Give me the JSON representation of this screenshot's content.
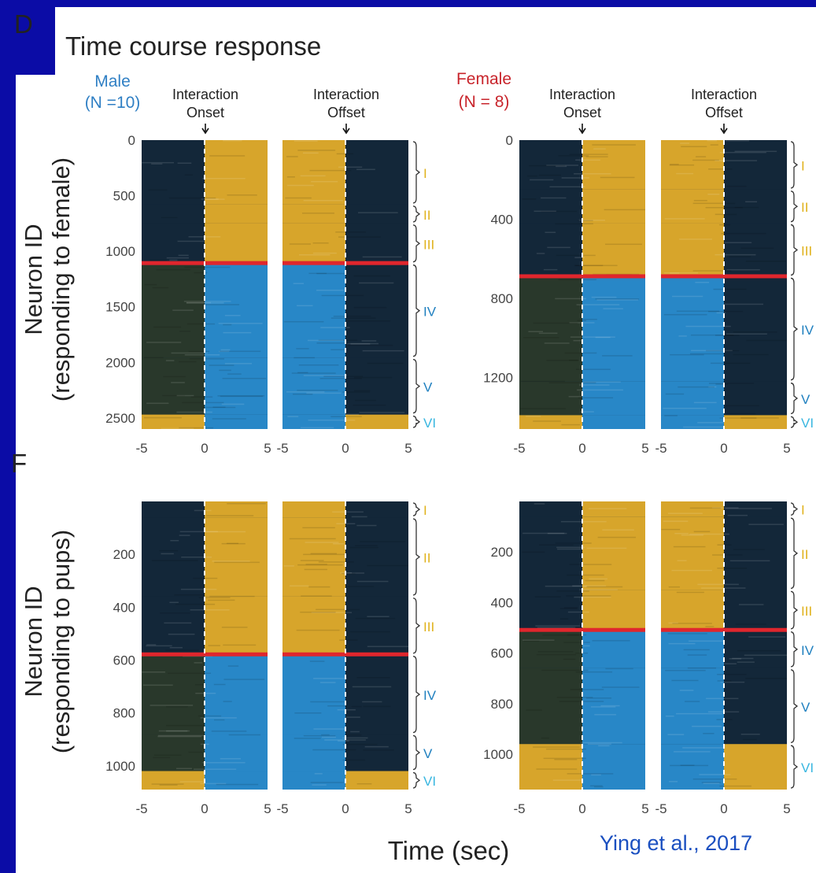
{
  "panel_letter_top": "D",
  "panel_letter_bottom": "F",
  "title": "Time course response",
  "groups": [
    {
      "name": "Male",
      "n": "(N =10)",
      "color": "#2f7fc4"
    },
    {
      "name": "Female",
      "n": "(N = 8)",
      "color": "#c8242b"
    }
  ],
  "headings": {
    "onset": [
      "Interaction",
      "Onset"
    ],
    "offset": [
      "Interaction",
      "Offset"
    ]
  },
  "ylabels": {
    "top": [
      "Neuron ID",
      "(responding to female)"
    ],
    "bottom": [
      "Neuron ID",
      "(responding to pups)"
    ]
  },
  "xlabel": "Time (sec)",
  "credit": "Ying et al., 2017",
  "colors": {
    "up": "#e8b02a",
    "down": "#2a8fd4",
    "neutral": "#13273a",
    "divider": "#e0262d",
    "cluster_up": "#e0b21c",
    "cluster_down": "#1e7fbf",
    "cluster_light": "#38b6e0"
  },
  "chart_data": [
    {
      "type": "heatmap",
      "title": "Male (N =10)",
      "ylabel": "Neuron ID (responding to female)",
      "xlabel": "Time (sec)",
      "panels": [
        "Interaction Onset",
        "Interaction Offset"
      ],
      "x": [
        -5,
        0,
        5
      ],
      "xticks": [
        "-5",
        "0",
        "5"
      ],
      "ylim": [
        0,
        2600
      ],
      "yticks": [
        0,
        500,
        1000,
        1500,
        2000,
        2500
      ],
      "divider_at": 1110,
      "clusters": [
        {
          "label": "I",
          "start": 0,
          "end": 580,
          "sign": "up"
        },
        {
          "label": "II",
          "start": 580,
          "end": 750,
          "sign": "up"
        },
        {
          "label": "III",
          "start": 750,
          "end": 1110,
          "sign": "up"
        },
        {
          "label": "IV",
          "start": 1110,
          "end": 1960,
          "sign": "down"
        },
        {
          "label": "V",
          "start": 1960,
          "end": 2470,
          "sign": "down"
        },
        {
          "label": "VI",
          "start": 2470,
          "end": 2600,
          "sign": "light"
        }
      ]
    },
    {
      "type": "heatmap",
      "title": "Female (N = 8)",
      "ylabel": "Neuron ID (responding to female)",
      "xlabel": "Time (sec)",
      "panels": [
        "Interaction Onset",
        "Interaction Offset"
      ],
      "x": [
        -5,
        0,
        5
      ],
      "xticks": [
        "-5",
        "0",
        "5"
      ],
      "ylim": [
        0,
        1460
      ],
      "yticks": [
        0,
        400,
        800,
        1200
      ],
      "divider_at": 690,
      "clusters": [
        {
          "label": "I",
          "start": 0,
          "end": 250,
          "sign": "up"
        },
        {
          "label": "II",
          "start": 250,
          "end": 420,
          "sign": "up"
        },
        {
          "label": "III",
          "start": 420,
          "end": 690,
          "sign": "up"
        },
        {
          "label": "IV",
          "start": 690,
          "end": 1220,
          "sign": "down"
        },
        {
          "label": "V",
          "start": 1220,
          "end": 1390,
          "sign": "down"
        },
        {
          "label": "VI",
          "start": 1390,
          "end": 1460,
          "sign": "light"
        }
      ]
    },
    {
      "type": "heatmap",
      "title": "Male (N =10)",
      "ylabel": "Neuron ID (responding to pups)",
      "xlabel": "Time (sec)",
      "panels": [
        "Interaction Onset",
        "Interaction Offset"
      ],
      "x": [
        -5,
        0,
        5
      ],
      "xticks": [
        "-5",
        "0",
        "5"
      ],
      "ylim": [
        0,
        1090
      ],
      "yticks": [
        200,
        400,
        600,
        800,
        1000
      ],
      "divider_at": 580,
      "clusters": [
        {
          "label": "I",
          "start": 0,
          "end": 60,
          "sign": "up"
        },
        {
          "label": "II",
          "start": 60,
          "end": 360,
          "sign": "up"
        },
        {
          "label": "III",
          "start": 360,
          "end": 580,
          "sign": "up"
        },
        {
          "label": "IV",
          "start": 580,
          "end": 880,
          "sign": "down"
        },
        {
          "label": "V",
          "start": 880,
          "end": 1020,
          "sign": "down"
        },
        {
          "label": "VI",
          "start": 1020,
          "end": 1090,
          "sign": "light"
        }
      ]
    },
    {
      "type": "heatmap",
      "title": "Female (N = 8)",
      "ylabel": "Neuron ID (responding to pups)",
      "xlabel": "Time (sec)",
      "panels": [
        "Interaction Onset",
        "Interaction Offset"
      ],
      "x": [
        -5,
        0,
        5
      ],
      "xticks": [
        "-5",
        "0",
        "5"
      ],
      "ylim": [
        0,
        1140
      ],
      "yticks": [
        200,
        400,
        600,
        800,
        1000
      ],
      "divider_at": 510,
      "clusters": [
        {
          "label": "I",
          "start": 0,
          "end": 60,
          "sign": "up"
        },
        {
          "label": "II",
          "start": 60,
          "end": 350,
          "sign": "up"
        },
        {
          "label": "III",
          "start": 350,
          "end": 510,
          "sign": "up"
        },
        {
          "label": "IV",
          "start": 510,
          "end": 660,
          "sign": "down"
        },
        {
          "label": "V",
          "start": 660,
          "end": 960,
          "sign": "down"
        },
        {
          "label": "VI",
          "start": 960,
          "end": 1140,
          "sign": "light"
        }
      ]
    }
  ]
}
